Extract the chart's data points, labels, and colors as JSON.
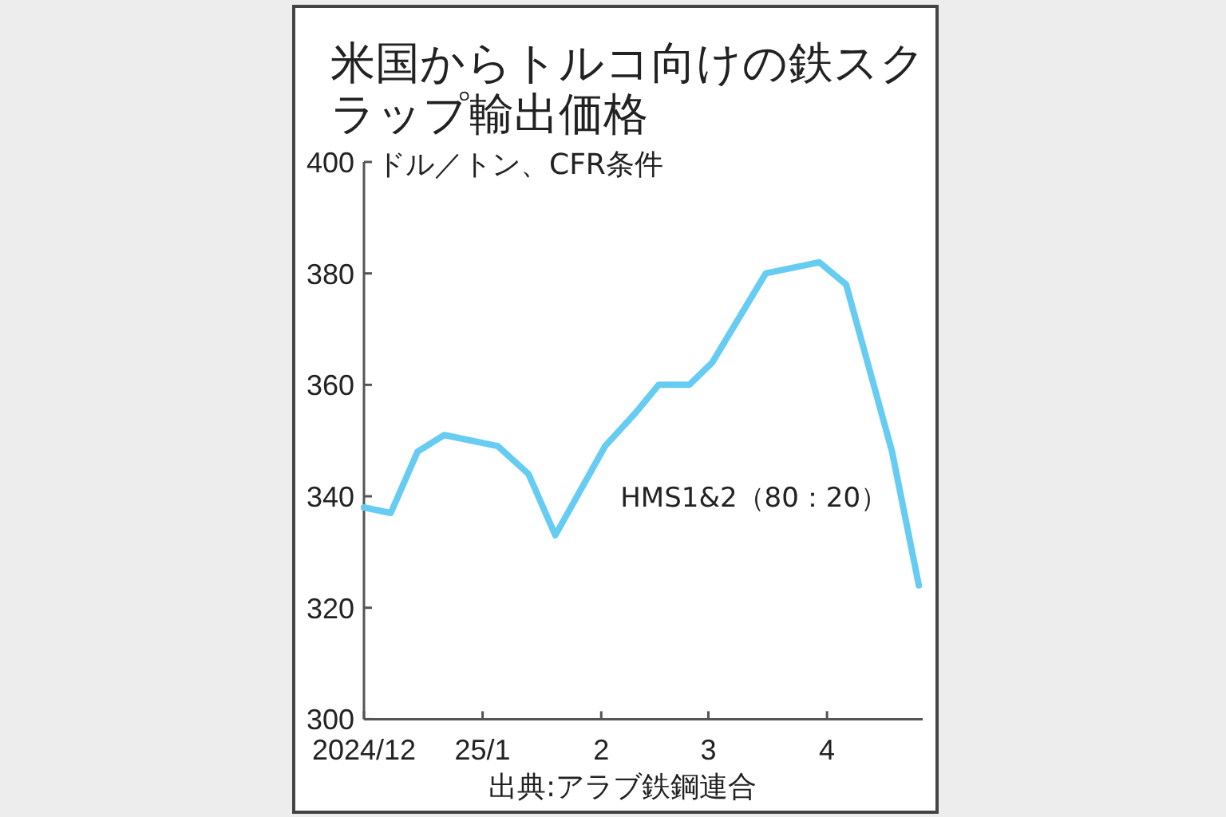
{
  "chart_data": {
    "type": "line",
    "title": "米国からトルコ向けの鉄スクラップ輸出価格",
    "ylabel": "ドル／トン、CFR条件",
    "x": [
      "2024-12-01",
      "2024-12-08",
      "2024-12-15",
      "2024-12-22",
      "2025-01-05",
      "2025-01-13",
      "2025-01-20",
      "2025-02-02",
      "2025-02-10",
      "2025-02-16",
      "2025-02-24",
      "2025-03-02",
      "2025-03-16",
      "2025-03-30",
      "2025-04-06",
      "2025-04-18",
      "2025-04-25"
    ],
    "series": [
      {
        "name": "HMS1&2（80：20）",
        "color": "#66ccf2",
        "values": [
          338,
          337,
          348,
          351,
          349,
          344,
          333,
          349,
          355,
          360,
          360,
          364,
          380,
          382,
          378,
          348,
          324
        ]
      }
    ],
    "xlim": [
      "2024-12-01",
      "2025-04-26"
    ],
    "xticks": [
      {
        "value": "2024-12-01",
        "label": "2024/12"
      },
      {
        "value": "2025-01-01",
        "label": "25/1"
      },
      {
        "value": "2025-02-01",
        "label": "2"
      },
      {
        "value": "2025-03-01",
        "label": "3"
      },
      {
        "value": "2025-04-01",
        "label": "4"
      }
    ],
    "ylim": [
      300,
      400
    ],
    "yticks": [
      300,
      320,
      340,
      360,
      380,
      400
    ],
    "line_style": "solid",
    "annotations": [
      "出典:アラブ鉄鋼連合"
    ]
  }
}
